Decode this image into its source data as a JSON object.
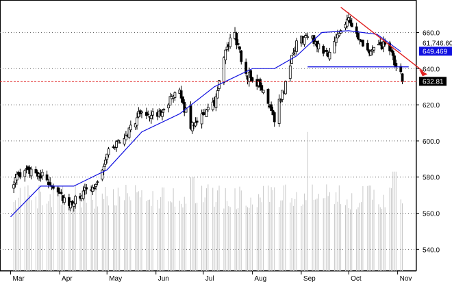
{
  "chart_data": {
    "type": "candlestick",
    "y_axis": {
      "position": "right",
      "range": [
        528,
        678
      ],
      "ticks": [
        540.0,
        560.0,
        580.0,
        600.0,
        620.0,
        640.0,
        660.0
      ],
      "tick_labels": [
        "540.0",
        "560.0",
        "580.0",
        "600.0",
        "620.0",
        "640.0",
        "660.0"
      ],
      "grid": "dotted-horizontal"
    },
    "x_axis": {
      "months": [
        "Mar",
        "Apr",
        "May",
        "Jun",
        "Jul",
        "Aug",
        "Sep",
        "Oct",
        "Nov"
      ]
    },
    "labels": {
      "ma_value": "649.469",
      "level_value": "61,746.60",
      "last_price": "632.81"
    },
    "colors": {
      "candles": "#000000",
      "moving_average": "#1010e0",
      "trend_line": "#e02020",
      "support_line": "#1010e0",
      "price_line": "#e02020",
      "volume": "#c8c8c8",
      "grid": "#666666",
      "ma_badge_bg": "#1010e0",
      "ma_badge_text": "#ffffff",
      "price_badge_bg": "#000000",
      "price_badge_text": "#ffffff"
    },
    "anchors": [
      {
        "x": "Mar 1",
        "y": 577
      },
      {
        "x": "Mar 15",
        "y": 585
      },
      {
        "x": "Mar 31",
        "y": 573
      },
      {
        "x": "Apr 7",
        "y": 563
      },
      {
        "x": "Apr 14",
        "y": 570
      },
      {
        "x": "Apr 25",
        "y": 577
      },
      {
        "x": "May 2",
        "y": 595
      },
      {
        "x": "May 12",
        "y": 602
      },
      {
        "x": "May 23",
        "y": 617
      },
      {
        "x": "Jun 1",
        "y": 613
      },
      {
        "x": "Jun 9",
        "y": 622
      },
      {
        "x": "Jun 16",
        "y": 626
      },
      {
        "x": "Jun 23",
        "y": 608
      },
      {
        "x": "Jun 30",
        "y": 615
      },
      {
        "x": "Jul 8",
        "y": 620
      },
      {
        "x": "Jul 14",
        "y": 645
      },
      {
        "x": "Jul 20",
        "y": 662
      },
      {
        "x": "Jul 27",
        "y": 638
      },
      {
        "x": "Aug 3",
        "y": 633
      },
      {
        "x": "Aug 10",
        "y": 625
      },
      {
        "x": "Aug 15",
        "y": 613
      },
      {
        "x": "Aug 22",
        "y": 632
      },
      {
        "x": "Aug 29",
        "y": 655
      },
      {
        "x": "Sep 6",
        "y": 658
      },
      {
        "x": "Sep 14",
        "y": 651
      },
      {
        "x": "Sep 19",
        "y": 648
      },
      {
        "x": "Sep 26",
        "y": 663
      },
      {
        "x": "Oct 1",
        "y": 669
      },
      {
        "x": "Oct 5",
        "y": 659
      },
      {
        "x": "Oct 12",
        "y": 649
      },
      {
        "x": "Oct 19",
        "y": 651
      },
      {
        "x": "Oct 25",
        "y": 654
      },
      {
        "x": "Oct 30",
        "y": 643
      },
      {
        "x": "Nov 3",
        "y": 636
      },
      {
        "x": "Nov 4",
        "y": 632.81
      }
    ],
    "moving_average": [
      {
        "x": "Mar 1",
        "y": 558
      },
      {
        "x": "Mar 20",
        "y": 575
      },
      {
        "x": "Apr 10",
        "y": 575
      },
      {
        "x": "May 1",
        "y": 584
      },
      {
        "x": "May 23",
        "y": 605
      },
      {
        "x": "Jun 16",
        "y": 615
      },
      {
        "x": "Jul 8",
        "y": 630
      },
      {
        "x": "Aug 1",
        "y": 640
      },
      {
        "x": "Aug 15",
        "y": 640
      },
      {
        "x": "Aug 29",
        "y": 647
      },
      {
        "x": "Sep 14",
        "y": 660
      },
      {
        "x": "Oct 1",
        "y": 661
      },
      {
        "x": "Oct 19",
        "y": 659
      },
      {
        "x": "Nov 3",
        "y": 649.469
      }
    ],
    "trend_line": {
      "from": {
        "x": "Sep 26",
        "y": 674
      },
      "to": {
        "x": "Nov 12",
        "y": 640
      }
    },
    "support_line": {
      "from": {
        "x": "Sep 5",
        "y": 641
      },
      "to": {
        "x": "Nov 8",
        "y": 641
      }
    },
    "price_line": {
      "y": 632.81
    },
    "volume_spikes": [
      {
        "x": "Jun 24",
        "y": 580
      },
      {
        "x": "Sep 6",
        "y": 605
      },
      {
        "x": "Oct 30",
        "y": 583
      }
    ]
  }
}
